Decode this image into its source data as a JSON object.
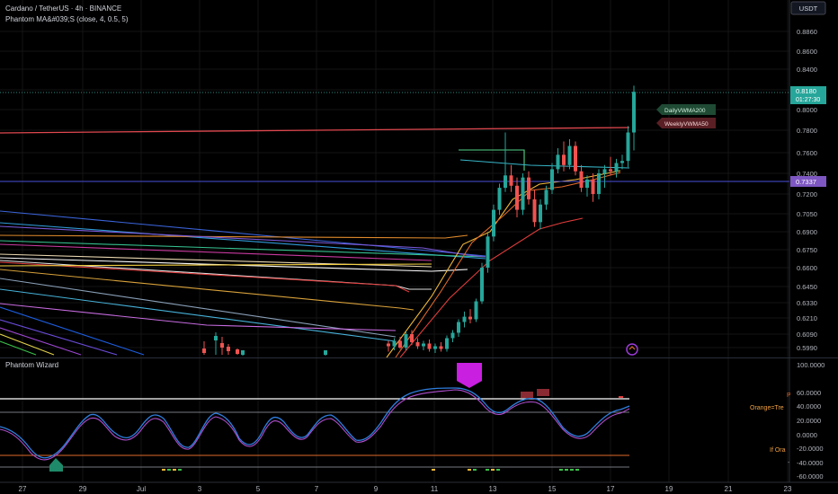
{
  "header": {
    "symbol_line": "Cardano / TetherUS · 4h · BINANCE",
    "indicator_line": "Phantom MA&#039;S (close, 4, 0.5, 5)",
    "currency_button": "USDT"
  },
  "price_axis": {
    "ticks": [
      "0.8860",
      "0.8600",
      "0.8400",
      "0.8200",
      "0.8000",
      "0.7800",
      "0.7600",
      "0.7400",
      "0.7200",
      "0.7050",
      "0.6900",
      "0.6750",
      "0.6600",
      "0.6450",
      "0.6330",
      "0.6210",
      "0.6090",
      "0.5990"
    ],
    "current_price": "0.8180",
    "countdown": "01:27:30",
    "hline_label": "0.7337"
  },
  "labels": {
    "daily": "DailyVWMA200",
    "weekly": "WeeklyVWMA50"
  },
  "oscillator": {
    "title": "Phantom Wizard",
    "ticks": [
      "100.0000",
      "60.0000",
      "40.0000",
      "20.0000",
      "0.0000",
      "-20.0000",
      "-40.0000",
      "-60.0000"
    ],
    "side_labels": [
      "Orange=Tre",
      "If Ora"
    ]
  },
  "time_axis": {
    "ticks": [
      "27",
      "29",
      "Jul",
      "3",
      "5",
      "7",
      "9",
      "11",
      "13",
      "15",
      "17",
      "19",
      "21",
      "23"
    ]
  },
  "chart_data": {
    "type": "candlestick",
    "title": "Cardano / TetherUS · 4h · BINANCE",
    "ylim": [
      0.595,
      0.89
    ],
    "oscillator_ylim": [
      -65,
      105
    ],
    "candles": [
      {
        "t": 0,
        "o": 0.602,
        "h": 0.604,
        "l": 0.596,
        "c": 0.6
      },
      {
        "t": 1,
        "o": 0.6,
        "h": 0.606,
        "l": 0.597,
        "c": 0.604
      },
      {
        "t": 2,
        "o": 0.604,
        "h": 0.607,
        "l": 0.598,
        "c": 0.599
      },
      {
        "t": 3,
        "o": 0.599,
        "h": 0.611,
        "l": 0.597,
        "c": 0.609
      },
      {
        "t": 4,
        "o": 0.609,
        "h": 0.612,
        "l": 0.601,
        "c": 0.603
      },
      {
        "t": 5,
        "o": 0.603,
        "h": 0.606,
        "l": 0.598,
        "c": 0.6
      },
      {
        "t": 6,
        "o": 0.6,
        "h": 0.604,
        "l": 0.597,
        "c": 0.602
      },
      {
        "t": 7,
        "o": 0.602,
        "h": 0.605,
        "l": 0.596,
        "c": 0.598
      },
      {
        "t": 8,
        "o": 0.598,
        "h": 0.602,
        "l": 0.595,
        "c": 0.6
      },
      {
        "t": 9,
        "o": 0.6,
        "h": 0.603,
        "l": 0.596,
        "c": 0.598
      },
      {
        "t": 10,
        "o": 0.598,
        "h": 0.608,
        "l": 0.596,
        "c": 0.606
      },
      {
        "t": 11,
        "o": 0.606,
        "h": 0.612,
        "l": 0.603,
        "c": 0.61
      },
      {
        "t": 12,
        "o": 0.61,
        "h": 0.62,
        "l": 0.607,
        "c": 0.618
      },
      {
        "t": 13,
        "o": 0.618,
        "h": 0.626,
        "l": 0.614,
        "c": 0.622
      },
      {
        "t": 14,
        "o": 0.622,
        "h": 0.628,
        "l": 0.617,
        "c": 0.62
      },
      {
        "t": 15,
        "o": 0.62,
        "h": 0.636,
        "l": 0.618,
        "c": 0.634
      },
      {
        "t": 16,
        "o": 0.634,
        "h": 0.664,
        "l": 0.632,
        "c": 0.66
      },
      {
        "t": 17,
        "o": 0.66,
        "h": 0.69,
        "l": 0.656,
        "c": 0.686
      },
      {
        "t": 18,
        "o": 0.686,
        "h": 0.712,
        "l": 0.682,
        "c": 0.708
      },
      {
        "t": 19,
        "o": 0.708,
        "h": 0.73,
        "l": 0.704,
        "c": 0.726
      },
      {
        "t": 20,
        "o": 0.726,
        "h": 0.778,
        "l": 0.722,
        "c": 0.738
      },
      {
        "t": 21,
        "o": 0.738,
        "h": 0.748,
        "l": 0.722,
        "c": 0.728
      },
      {
        "t": 22,
        "o": 0.728,
        "h": 0.736,
        "l": 0.702,
        "c": 0.708
      },
      {
        "t": 23,
        "o": 0.708,
        "h": 0.74,
        "l": 0.704,
        "c": 0.736
      },
      {
        "t": 24,
        "o": 0.736,
        "h": 0.742,
        "l": 0.712,
        "c": 0.716
      },
      {
        "t": 25,
        "o": 0.716,
        "h": 0.724,
        "l": 0.694,
        "c": 0.698
      },
      {
        "t": 26,
        "o": 0.698,
        "h": 0.716,
        "l": 0.692,
        "c": 0.712
      },
      {
        "t": 27,
        "o": 0.712,
        "h": 0.728,
        "l": 0.708,
        "c": 0.724
      },
      {
        "t": 28,
        "o": 0.724,
        "h": 0.75,
        "l": 0.72,
        "c": 0.744
      },
      {
        "t": 29,
        "o": 0.744,
        "h": 0.764,
        "l": 0.74,
        "c": 0.758
      },
      {
        "t": 30,
        "o": 0.758,
        "h": 0.77,
        "l": 0.742,
        "c": 0.748
      },
      {
        "t": 31,
        "o": 0.748,
        "h": 0.772,
        "l": 0.744,
        "c": 0.766
      },
      {
        "t": 32,
        "o": 0.766,
        "h": 0.77,
        "l": 0.738,
        "c": 0.742
      },
      {
        "t": 33,
        "o": 0.742,
        "h": 0.748,
        "l": 0.722,
        "c": 0.726
      },
      {
        "t": 34,
        "o": 0.726,
        "h": 0.738,
        "l": 0.718,
        "c": 0.734
      },
      {
        "t": 35,
        "o": 0.734,
        "h": 0.74,
        "l": 0.714,
        "c": 0.72
      },
      {
        "t": 36,
        "o": 0.72,
        "h": 0.744,
        "l": 0.716,
        "c": 0.74
      },
      {
        "t": 37,
        "o": 0.74,
        "h": 0.748,
        "l": 0.726,
        "c": 0.744
      },
      {
        "t": 38,
        "o": 0.744,
        "h": 0.756,
        "l": 0.738,
        "c": 0.742
      },
      {
        "t": 39,
        "o": 0.742,
        "h": 0.754,
        "l": 0.736,
        "c": 0.75
      },
      {
        "t": 40,
        "o": 0.75,
        "h": 0.758,
        "l": 0.744,
        "c": 0.752
      },
      {
        "t": 41,
        "o": 0.752,
        "h": 0.784,
        "l": 0.746,
        "c": 0.778
      },
      {
        "t": 42,
        "o": 0.778,
        "h": 0.824,
        "l": 0.762,
        "c": 0.818
      }
    ],
    "horizontal_line": 0.7337,
    "current_price": 0.818
  }
}
